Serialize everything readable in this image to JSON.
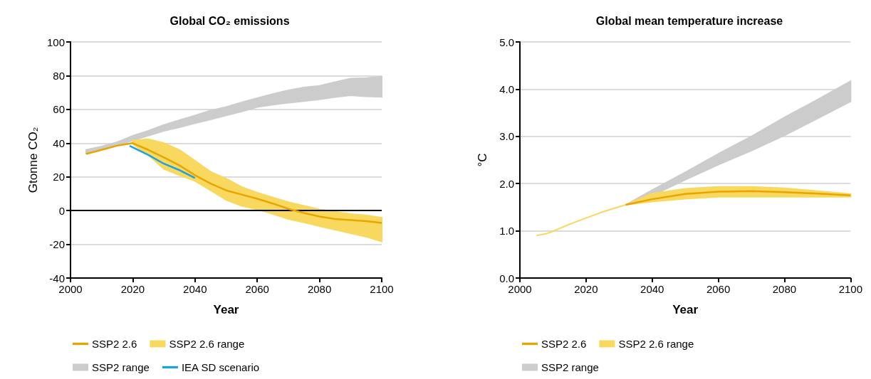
{
  "chart_data": [
    {
      "type": "line",
      "title": "Global CO₂ emissions",
      "xlabel": "Year",
      "ylabel": "Gtonne CO₂",
      "xlim": [
        2000,
        2100
      ],
      "xticks": [
        2000,
        2020,
        2040,
        2060,
        2080,
        2100
      ],
      "ylim": [
        -40,
        100
      ],
      "yticks": [
        -40,
        -20,
        0,
        20,
        40,
        60,
        80,
        100
      ],
      "grid": "y",
      "legend": "bottom",
      "ref_lines": [
        {
          "axis": "y",
          "value": 0,
          "color": "#000000"
        }
      ],
      "series": [
        {
          "name": "SSP2 range",
          "type": "area",
          "color": "#cccccc",
          "x": [
            2005,
            2010,
            2015,
            2020,
            2025,
            2030,
            2035,
            2040,
            2045,
            2050,
            2055,
            2060,
            2065,
            2070,
            2075,
            2080,
            2085,
            2090,
            2095,
            2100
          ],
          "values": [
            null,
            null,
            null,
            null,
            null,
            null,
            null,
            null,
            null,
            null,
            null,
            null,
            null,
            null,
            null,
            null,
            null,
            null,
            null,
            null
          ],
          "lower": [
            33.9,
            36.3,
            38.8,
            41.6,
            44.4,
            47.3,
            49.4,
            51.8,
            54,
            56.4,
            58.8,
            61.4,
            62.8,
            63.9,
            64.9,
            65.9,
            67.3,
            68.4,
            67.7,
            67.4
          ],
          "upper": [
            36,
            38,
            40.6,
            44.4,
            47.3,
            50.8,
            53.6,
            56.4,
            59.3,
            61.4,
            64.2,
            66.7,
            69.1,
            71.3,
            73,
            74,
            76.2,
            78.3,
            78.6,
            79.4
          ]
        },
        {
          "name": "SSP2 2.6 range",
          "type": "area",
          "color": "#f9d85f",
          "x": [
            2020,
            2025,
            2030,
            2035,
            2040,
            2045,
            2050,
            2055,
            2060,
            2065,
            2070,
            2075,
            2080,
            2085,
            2090,
            2095,
            2100
          ],
          "values": [
            null,
            null,
            null,
            null,
            null,
            null,
            null,
            null,
            null,
            null,
            null,
            null,
            null,
            null,
            null,
            null,
            null
          ],
          "lower": [
            39.5,
            33,
            24.7,
            21,
            17.6,
            12,
            6.3,
            2.8,
            0.7,
            -2,
            -5,
            -7,
            -9.2,
            -11.3,
            -13.4,
            -15.5,
            -18.3
          ],
          "upper": [
            41.6,
            42.3,
            40,
            36,
            29.6,
            23,
            19,
            14,
            10.6,
            7.8,
            5,
            2.8,
            0.7,
            -0.7,
            -2,
            -2.8,
            -4.2
          ]
        },
        {
          "name": "SSP2 2.6",
          "color": "#e8a500",
          "x": [
            2005,
            2010,
            2015,
            2020,
            2025,
            2030,
            2035,
            2040,
            2045,
            2050,
            2055,
            2060,
            2065,
            2070,
            2075,
            2080,
            2085,
            2090,
            2095,
            2100
          ],
          "values": [
            33.6,
            36,
            38.5,
            40,
            36,
            31.5,
            26.8,
            21,
            16,
            12,
            9.5,
            7,
            4.2,
            1,
            -1.4,
            -3.5,
            -5,
            -5.6,
            -6.3,
            -7.3
          ]
        },
        {
          "name": "IEA SD scenario",
          "color": "#1aa3e0",
          "x": [
            2019,
            2025,
            2030,
            2035,
            2040
          ],
          "values": [
            38.4,
            33,
            27.8,
            24,
            19.3
          ]
        }
      ]
    },
    {
      "type": "line",
      "title": "Global mean temperature increase",
      "xlabel": "Year",
      "ylabel": "°C",
      "xlim": [
        2000,
        2100
      ],
      "xticks": [
        2000,
        2020,
        2040,
        2060,
        2080,
        2100
      ],
      "ylim": [
        0,
        5
      ],
      "yticks": [
        {
          "value": 0,
          "label": "0.0"
        },
        {
          "value": 1,
          "label": "1.0"
        },
        {
          "value": 2,
          "label": "2.0"
        },
        {
          "value": 3,
          "label": "3.0"
        },
        {
          "value": 4,
          "label": "4.0"
        },
        {
          "value": 5,
          "label": "5.0"
        }
      ],
      "grid": "y",
      "legend": "bottom",
      "series": [
        {
          "name": "SSP2 range",
          "type": "area",
          "color": "#cccccc",
          "x": [
            2032,
            2040,
            2050,
            2060,
            2070,
            2080,
            2090,
            2100
          ],
          "values": [
            null,
            null,
            null,
            null,
            null,
            null,
            null,
            null
          ],
          "lower": [
            1.55,
            1.75,
            2.08,
            2.4,
            2.7,
            3.02,
            3.38,
            3.74
          ],
          "upper": [
            1.55,
            1.86,
            2.24,
            2.63,
            3.0,
            3.4,
            3.78,
            4.17
          ]
        },
        {
          "name": "SSP2 2.6 range",
          "type": "area",
          "color": "#f9d85f",
          "x": [
            2005,
            2008,
            2010,
            2015,
            2020,
            2025,
            2032,
            2040,
            2050,
            2060,
            2070,
            2080,
            2090,
            2100
          ],
          "values": [
            null,
            null,
            null,
            null,
            null,
            null,
            null,
            null,
            null,
            null,
            null,
            null,
            null,
            null
          ],
          "lower": [
            0.9,
            0.94,
            0.99,
            1.14,
            1.27,
            1.4,
            1.55,
            1.62,
            1.68,
            1.72,
            1.72,
            1.72,
            1.72,
            1.72
          ],
          "upper": [
            0.9,
            0.94,
            0.99,
            1.14,
            1.27,
            1.4,
            1.55,
            1.79,
            1.89,
            1.93,
            1.93,
            1.9,
            1.84,
            1.78
          ]
        },
        {
          "name": "SSP2 2.6",
          "color": "#e8a500",
          "x": [
            2032,
            2040,
            2050,
            2060,
            2070,
            2080,
            2090,
            2100
          ],
          "values": [
            1.55,
            1.67,
            1.78,
            1.83,
            1.84,
            1.82,
            1.79,
            1.75
          ]
        }
      ]
    }
  ]
}
